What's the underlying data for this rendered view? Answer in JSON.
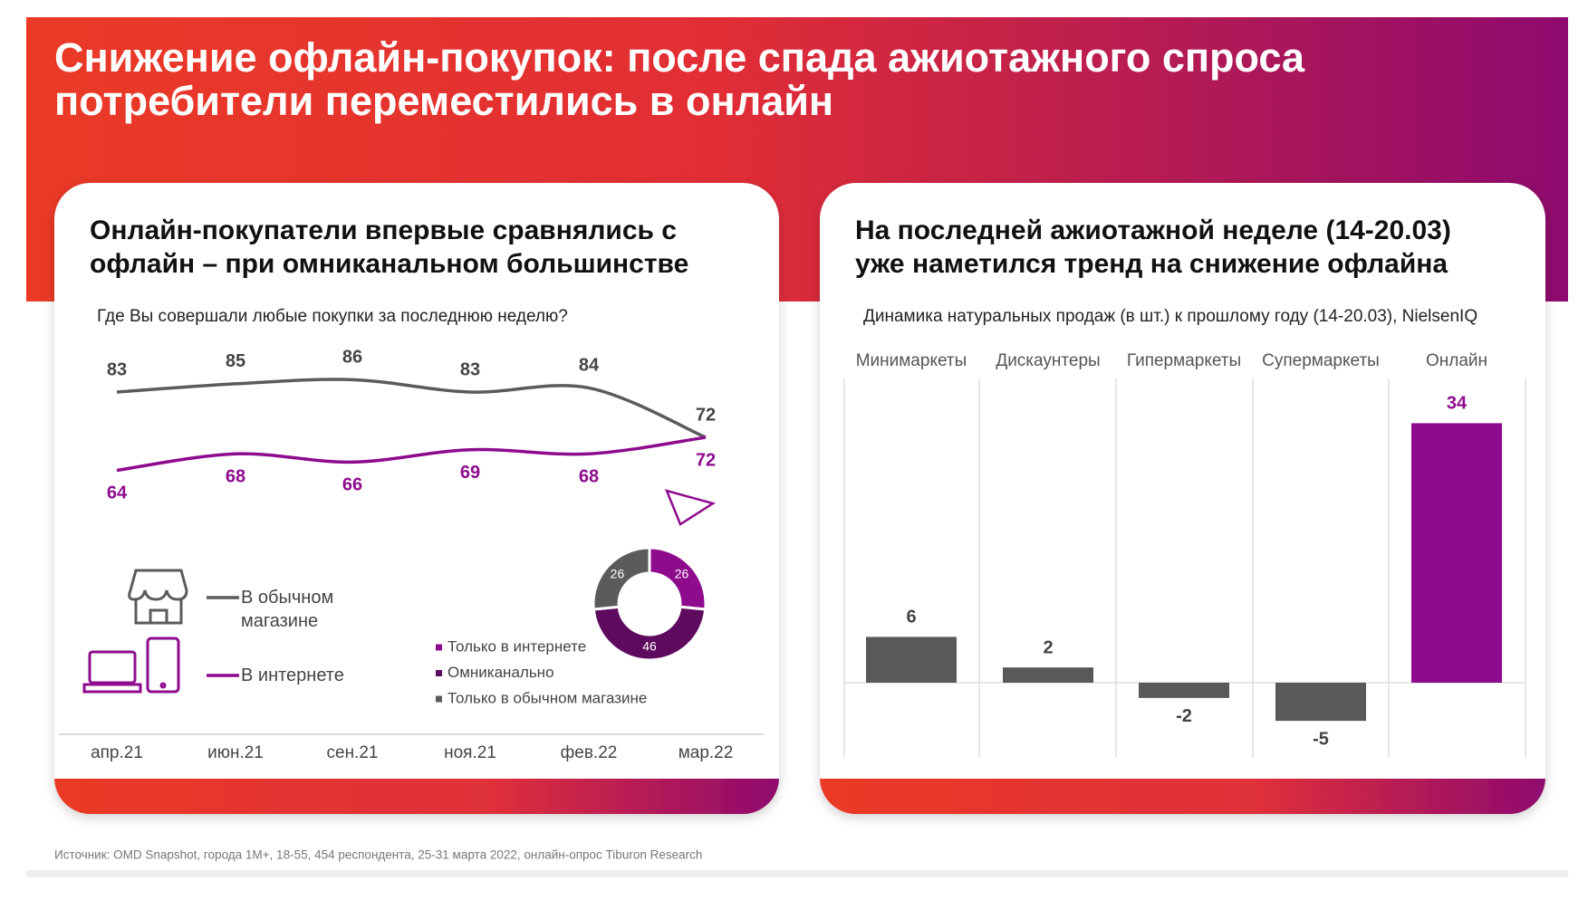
{
  "header": {
    "title": [
      "Снижение офлайн-покупок: после спада ажиотажного спроса",
      "потребители переместились в онлайн"
    ]
  },
  "chart_data": [
    {
      "type": "line",
      "title": [
        "Онлайн-покупатели впервые сравнялись с",
        "офлайн – при омниканальном большинстве"
      ],
      "subtitle": "Где Вы совершали любые покупки за последнюю неделю?",
      "categories": [
        "апр.21",
        "июн.21",
        "сен.21",
        "ноя.21",
        "фев.22",
        "мар.22"
      ],
      "series": [
        {
          "name": "В обычном магазине",
          "color": "#5b5b5b",
          "values": [
            83,
            85,
            86,
            83,
            84,
            72
          ]
        },
        {
          "name": "В интернете",
          "color": "#8e0b8e",
          "values": [
            64,
            68,
            66,
            69,
            68,
            72
          ]
        }
      ]
    },
    {
      "type": "donut",
      "categories": [
        "Только в интернете",
        "Омниканально",
        "Только в обычном магазине"
      ],
      "values": [
        26,
        46,
        26
      ],
      "colors": [
        "#8e0b8e",
        "#5e0a5e",
        "#5b5b5b"
      ]
    },
    {
      "type": "bar",
      "title": [
        "На последней ажиотажной неделе (14-20.03)",
        "уже наметился тренд на снижение офлайна"
      ],
      "subtitle": "Динамика натуральных продаж (в шт.) к прошлому году (14-20.03), NielsenIQ",
      "categories": [
        "Минимаркеты",
        "Дискаунтеры",
        "Гипермаркеты",
        "Супермаркеты",
        "Онлайн"
      ],
      "values": [
        6,
        2,
        -2,
        -5,
        34
      ],
      "colors": [
        "#595959",
        "#595959",
        "#595959",
        "#595959",
        "#8e0b8e"
      ]
    }
  ],
  "footer": {
    "source": "Источник: OMD Snapshot, города 1M+, 18-55, 454 респондента, 25-31 марта 2022, онлайн-опрос Tiburon Research"
  }
}
